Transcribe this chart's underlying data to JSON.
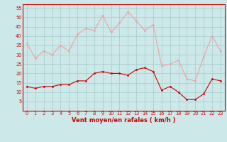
{
  "x": [
    0,
    1,
    2,
    3,
    4,
    5,
    6,
    7,
    8,
    9,
    10,
    11,
    12,
    13,
    14,
    15,
    16,
    17,
    18,
    19,
    20,
    21,
    22,
    23
  ],
  "avg_wind": [
    13,
    12,
    13,
    13,
    14,
    14,
    16,
    16,
    20,
    21,
    20,
    20,
    19,
    22,
    23,
    21,
    11,
    13,
    10,
    6,
    6,
    9,
    17,
    16
  ],
  "gust_wind": [
    36,
    28,
    32,
    30,
    35,
    32,
    41,
    44,
    43,
    51,
    42,
    47,
    53,
    48,
    43,
    46,
    24,
    25,
    27,
    17,
    16,
    29,
    40,
    32
  ],
  "bg_color": "#cce8e8",
  "grid_color": "#aacfcf",
  "avg_color": "#cc0000",
  "gust_color": "#f0a0a0",
  "xlabel": "Vent moyen/en rafales ( km/h )",
  "ylim": [
    0,
    57
  ],
  "yticks": [
    5,
    10,
    15,
    20,
    25,
    30,
    35,
    40,
    45,
    50,
    55
  ],
  "xticks": [
    0,
    1,
    2,
    3,
    4,
    5,
    6,
    7,
    8,
    9,
    10,
    11,
    12,
    13,
    14,
    15,
    16,
    17,
    18,
    19,
    20,
    21,
    22,
    23
  ]
}
